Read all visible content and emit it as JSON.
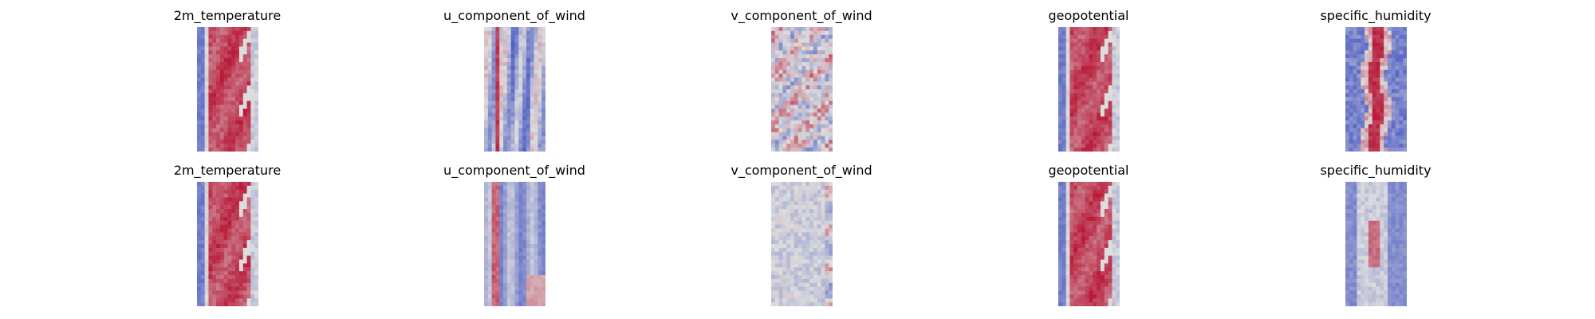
{
  "chart_data": {
    "type": "heatmap",
    "colormap": "coolwarm",
    "colors": {
      "low": "#3b4cc0",
      "mid": "#dddddd",
      "high": "#b40426",
      "background": "#ffffff"
    },
    "axes_visible": false,
    "grid": false,
    "legend": "none",
    "panels": [
      {
        "id": "r0c0",
        "title": "2m_temperature",
        "row": 0,
        "col": 0,
        "pattern": "warm-band"
      },
      {
        "id": "r0c1",
        "title": "u_component_of_wind",
        "row": 0,
        "col": 1,
        "pattern": "stripes"
      },
      {
        "id": "r0c2",
        "title": "v_component_of_wind",
        "row": 0,
        "col": 2,
        "pattern": "noise"
      },
      {
        "id": "r0c3",
        "title": "geopotential",
        "row": 0,
        "col": 3,
        "pattern": "warm-band"
      },
      {
        "id": "r0c4",
        "title": "specific_humidity",
        "row": 0,
        "col": 4,
        "pattern": "narrow-hot"
      },
      {
        "id": "r1c0",
        "title": "2m_temperature",
        "row": 1,
        "col": 0,
        "pattern": "warm-band"
      },
      {
        "id": "r1c1",
        "title": "u_component_of_wind",
        "row": 1,
        "col": 1,
        "pattern": "stripes-cool"
      },
      {
        "id": "r1c2",
        "title": "v_component_of_wind",
        "row": 1,
        "col": 2,
        "pattern": "noise-flat"
      },
      {
        "id": "r1c3",
        "title": "geopotential",
        "row": 1,
        "col": 3,
        "pattern": "warm-band"
      },
      {
        "id": "r1c4",
        "title": "specific_humidity",
        "row": 1,
        "col": 4,
        "pattern": "narrow-mild"
      }
    ]
  }
}
